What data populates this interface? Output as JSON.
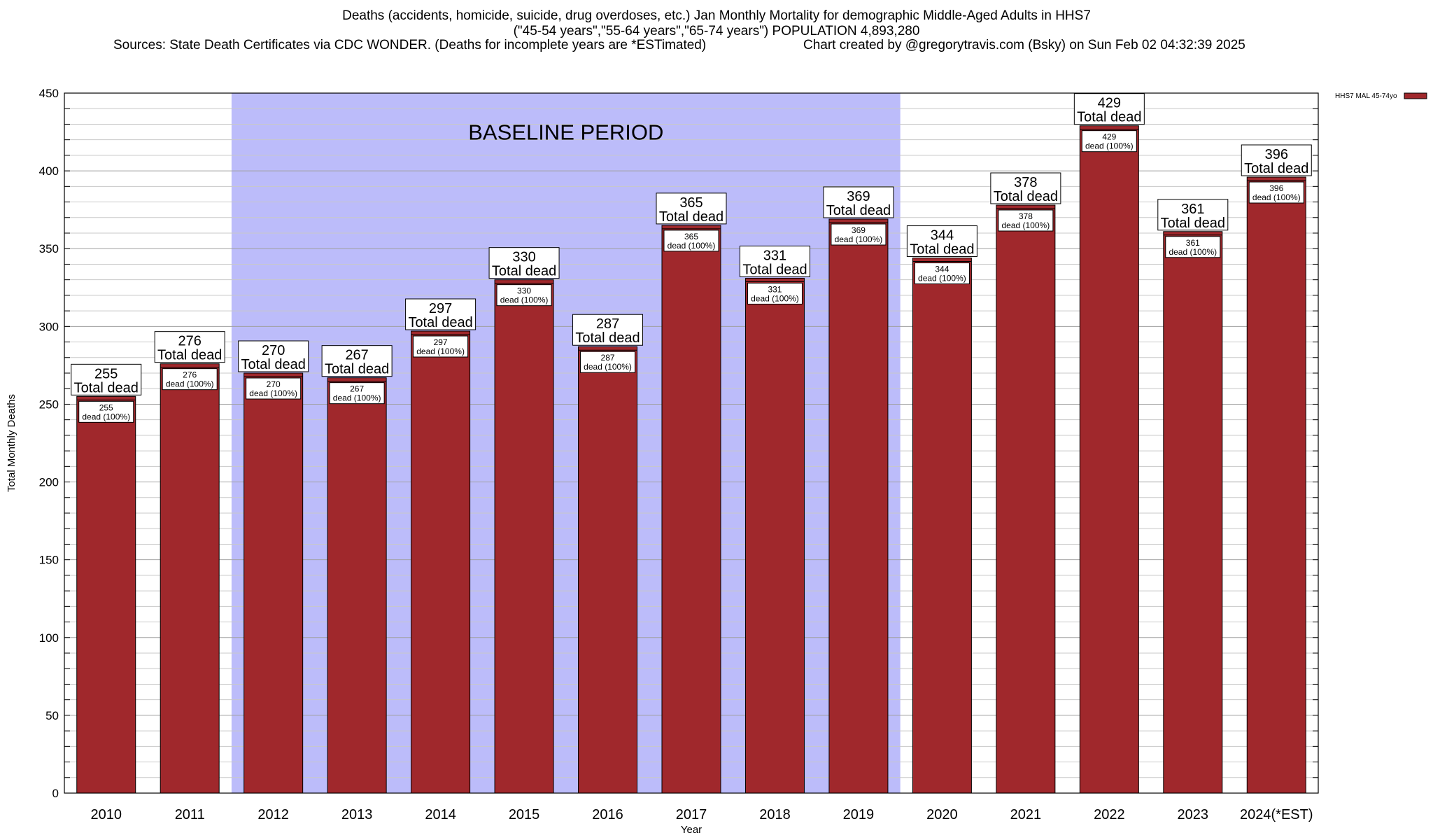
{
  "header": {
    "title_line1": "Deaths (accidents, homicide, suicide, drug overdoses, etc.) Jan Monthly Mortality for demographic Middle-Aged Adults in HHS7",
    "title_line2": "(\"45-54 years\",\"55-64 years\",\"65-74 years\") POPULATION 4,893,280",
    "sources": "Sources: State Death Certificates via CDC WONDER. (Deaths for incomplete years are *ESTimated)",
    "credit": "Chart created by @gregorytravis.com (Bsky) on Sun Feb 02 04:32:39 2025"
  },
  "chart_data": {
    "type": "bar",
    "xlabel": "Year",
    "ylabel": "Total Monthly Deaths",
    "ylim": [
      0,
      450
    ],
    "yticks": [
      0,
      50,
      100,
      150,
      200,
      250,
      300,
      350,
      400,
      450
    ],
    "minor_grid_step": 10,
    "grid": true,
    "categories": [
      "2010",
      "2011",
      "2012",
      "2013",
      "2014",
      "2015",
      "2016",
      "2017",
      "2018",
      "2019",
      "2020",
      "2021",
      "2022",
      "2023",
      "2024(*EST)"
    ],
    "series": [
      {
        "name": "HHS7 MAL 45-74yo",
        "color": "#a0282c",
        "values": [
          255,
          276,
          270,
          267,
          297,
          330,
          287,
          365,
          331,
          369,
          344,
          378,
          429,
          361,
          396
        ]
      }
    ],
    "total_label": "Total dead",
    "inner_label": "dead (100%)",
    "baseline": {
      "label": "BASELINE PERIOD",
      "from": "2012",
      "to": "2019",
      "color": "#bcbcfa"
    },
    "legend_position": "top-right"
  }
}
